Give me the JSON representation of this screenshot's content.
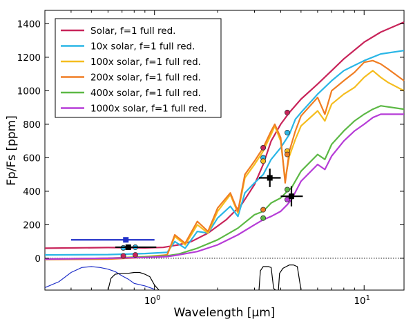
{
  "chart_data": {
    "type": "line",
    "xlabel": "Wavelength [μm]",
    "ylabel": "Fp/Fs [ppm]",
    "xscale": "log",
    "xlim": [
      0.3,
      15.5
    ],
    "ylim": [
      -190,
      1480
    ],
    "x_ticks": [
      {
        "value": 1,
        "label": "10",
        "sup": "0"
      },
      {
        "value": 10,
        "label": "10",
        "sup": "1"
      }
    ],
    "y_ticks": [
      0,
      200,
      400,
      600,
      800,
      1000,
      1200,
      1400
    ],
    "legend_position": "upper-left",
    "series": [
      {
        "name": "Solar, f=1 full red.",
        "color": "#c8245a",
        "points": [
          [
            0.3,
            60
          ],
          [
            0.6,
            64
          ],
          [
            0.9,
            62
          ],
          [
            1.1,
            65
          ],
          [
            1.3,
            80
          ],
          [
            1.5,
            100
          ],
          [
            1.8,
            150
          ],
          [
            2.2,
            230
          ],
          [
            2.6,
            320
          ],
          [
            3.0,
            440
          ],
          [
            3.3,
            560
          ],
          [
            3.6,
            700
          ],
          [
            4.0,
            800
          ],
          [
            4.4,
            870
          ],
          [
            5.0,
            950
          ],
          [
            6.0,
            1040
          ],
          [
            7.0,
            1120
          ],
          [
            8.0,
            1190
          ],
          [
            10.0,
            1290
          ],
          [
            12.0,
            1350
          ],
          [
            15.5,
            1410
          ]
        ]
      },
      {
        "name": "10x solar, f=1 full red.",
        "color": "#2ab6e6",
        "points": [
          [
            0.3,
            20
          ],
          [
            0.6,
            22
          ],
          [
            0.9,
            28
          ],
          [
            1.15,
            35
          ],
          [
            1.25,
            100
          ],
          [
            1.4,
            60
          ],
          [
            1.6,
            160
          ],
          [
            1.8,
            150
          ],
          [
            2.0,
            240
          ],
          [
            2.3,
            310
          ],
          [
            2.5,
            250
          ],
          [
            2.7,
            390
          ],
          [
            3.0,
            450
          ],
          [
            3.3,
            500
          ],
          [
            3.6,
            590
          ],
          [
            4.0,
            660
          ],
          [
            4.4,
            740
          ],
          [
            4.7,
            830
          ],
          [
            5.0,
            870
          ],
          [
            6.0,
            980
          ],
          [
            7.0,
            1060
          ],
          [
            8.0,
            1120
          ],
          [
            10.0,
            1180
          ],
          [
            12.0,
            1220
          ],
          [
            15.5,
            1240
          ]
        ]
      },
      {
        "name": "100x solar, f=1 full red.",
        "color": "#f5bd1f",
        "points": [
          [
            0.3,
            -5
          ],
          [
            0.6,
            0
          ],
          [
            0.9,
            10
          ],
          [
            1.15,
            20
          ],
          [
            1.25,
            130
          ],
          [
            1.4,
            80
          ],
          [
            1.6,
            200
          ],
          [
            1.8,
            150
          ],
          [
            2.0,
            280
          ],
          [
            2.3,
            380
          ],
          [
            2.5,
            270
          ],
          [
            2.7,
            480
          ],
          [
            3.0,
            560
          ],
          [
            3.3,
            640
          ],
          [
            3.6,
            740
          ],
          [
            3.75,
            790
          ],
          [
            4.0,
            700
          ],
          [
            4.2,
            470
          ],
          [
            4.4,
            610
          ],
          [
            4.7,
            710
          ],
          [
            5.0,
            790
          ],
          [
            6.0,
            880
          ],
          [
            6.5,
            820
          ],
          [
            7.0,
            920
          ],
          [
            8.0,
            980
          ],
          [
            9.0,
            1020
          ],
          [
            10.0,
            1080
          ],
          [
            11.0,
            1120
          ],
          [
            12.0,
            1080
          ],
          [
            13.0,
            1050
          ],
          [
            15.5,
            1000
          ]
        ]
      },
      {
        "name": "200x solar, f=1 full red.",
        "color": "#f07d23",
        "points": [
          [
            0.3,
            -8
          ],
          [
            0.6,
            -5
          ],
          [
            0.9,
            5
          ],
          [
            1.15,
            20
          ],
          [
            1.25,
            140
          ],
          [
            1.4,
            90
          ],
          [
            1.6,
            220
          ],
          [
            1.8,
            160
          ],
          [
            2.0,
            300
          ],
          [
            2.3,
            390
          ],
          [
            2.5,
            280
          ],
          [
            2.7,
            500
          ],
          [
            3.0,
            580
          ],
          [
            3.3,
            660
          ],
          [
            3.6,
            760
          ],
          [
            3.75,
            800
          ],
          [
            4.0,
            720
          ],
          [
            4.2,
            450
          ],
          [
            4.4,
            640
          ],
          [
            4.7,
            760
          ],
          [
            5.0,
            850
          ],
          [
            6.0,
            960
          ],
          [
            6.5,
            860
          ],
          [
            7.0,
            1000
          ],
          [
            8.0,
            1060
          ],
          [
            9.0,
            1110
          ],
          [
            10.0,
            1170
          ],
          [
            11.0,
            1180
          ],
          [
            12.0,
            1160
          ],
          [
            13.0,
            1130
          ],
          [
            15.5,
            1060
          ]
        ]
      },
      {
        "name": "400x solar, f=1 full red.",
        "color": "#5cb845",
        "points": [
          [
            0.3,
            -5
          ],
          [
            0.6,
            0
          ],
          [
            0.9,
            8
          ],
          [
            1.15,
            15
          ],
          [
            1.3,
            25
          ],
          [
            1.6,
            60
          ],
          [
            2.0,
            110
          ],
          [
            2.5,
            180
          ],
          [
            3.0,
            260
          ],
          [
            3.3,
            280
          ],
          [
            3.6,
            330
          ],
          [
            4.0,
            360
          ],
          [
            4.3,
            400
          ],
          [
            4.5,
            420
          ],
          [
            5.0,
            520
          ],
          [
            6.0,
            620
          ],
          [
            6.5,
            590
          ],
          [
            7.0,
            680
          ],
          [
            8.0,
            760
          ],
          [
            9.0,
            820
          ],
          [
            10.0,
            860
          ],
          [
            11.0,
            890
          ],
          [
            12.0,
            910
          ],
          [
            15.5,
            890
          ]
        ]
      },
      {
        "name": "1000x solar, f=1 full red.",
        "color": "#b63cd7",
        "points": [
          [
            0.3,
            -5
          ],
          [
            0.6,
            0
          ],
          [
            0.9,
            5
          ],
          [
            1.15,
            10
          ],
          [
            1.3,
            20
          ],
          [
            1.6,
            40
          ],
          [
            2.0,
            80
          ],
          [
            2.5,
            140
          ],
          [
            3.0,
            200
          ],
          [
            3.3,
            230
          ],
          [
            3.6,
            250
          ],
          [
            4.0,
            280
          ],
          [
            4.3,
            320
          ],
          [
            4.5,
            350
          ],
          [
            5.0,
            460
          ],
          [
            6.0,
            560
          ],
          [
            6.5,
            530
          ],
          [
            7.0,
            610
          ],
          [
            8.0,
            700
          ],
          [
            9.0,
            760
          ],
          [
            10.0,
            800
          ],
          [
            11.0,
            840
          ],
          [
            12.0,
            860
          ],
          [
            15.5,
            860
          ]
        ]
      }
    ],
    "band_markers": [
      {
        "x": 0.71,
        "values": [
          14,
          62
        ]
      },
      {
        "x": 0.81,
        "values": [
          20,
          66
        ]
      },
      {
        "x": 3.3,
        "values": [
          660,
          600,
          580,
          290,
          240
        ]
      },
      {
        "x": 4.3,
        "values": [
          870,
          750,
          640,
          620,
          410,
          350
        ]
      }
    ],
    "observations": [
      {
        "x": 0.73,
        "y": 110,
        "xerr": [
          0.33,
          0.27
        ],
        "yerr": 15,
        "color": "#1f2fc8",
        "marker": "square"
      },
      {
        "x": 0.75,
        "y": 66,
        "xerr": [
          0.1,
          0.27
        ],
        "yerr": 12,
        "color": "#000000",
        "marker": "square"
      },
      {
        "x": 3.55,
        "y": 480,
        "xerr": [
          0.4,
          0.45
        ],
        "yerr": 55,
        "color": "#000000",
        "marker": "square"
      },
      {
        "x": 4.5,
        "y": 370,
        "xerr": [
          0.5,
          0.6
        ],
        "yerr": 60,
        "color": "#000000",
        "marker": "square"
      }
    ],
    "filter_curves": [
      {
        "color": "#1f2fc8",
        "points": [
          [
            0.3,
            -175
          ],
          [
            0.35,
            -140
          ],
          [
            0.4,
            -85
          ],
          [
            0.45,
            -55
          ],
          [
            0.5,
            -50
          ],
          [
            0.55,
            -55
          ],
          [
            0.6,
            -65
          ],
          [
            0.65,
            -80
          ],
          [
            0.7,
            -105
          ],
          [
            0.75,
            -125
          ],
          [
            0.8,
            -150
          ],
          [
            0.9,
            -165
          ],
          [
            1.0,
            -185
          ]
        ]
      },
      {
        "color": "#000000",
        "points": [
          [
            0.6,
            -190
          ],
          [
            0.62,
            -120
          ],
          [
            0.65,
            -95
          ],
          [
            0.7,
            -90
          ],
          [
            0.75,
            -90
          ],
          [
            0.8,
            -85
          ],
          [
            0.85,
            -85
          ],
          [
            0.9,
            -95
          ],
          [
            0.95,
            -110
          ],
          [
            1.0,
            -160
          ],
          [
            1.05,
            -190
          ]
        ]
      },
      {
        "color": "#000000",
        "points": [
          [
            3.15,
            -190
          ],
          [
            3.2,
            -75
          ],
          [
            3.3,
            -50
          ],
          [
            3.5,
            -50
          ],
          [
            3.6,
            -55
          ],
          [
            3.7,
            -180
          ],
          [
            3.78,
            -190
          ]
        ]
      },
      {
        "color": "#000000",
        "points": [
          [
            3.9,
            -190
          ],
          [
            3.95,
            -90
          ],
          [
            4.1,
            -60
          ],
          [
            4.4,
            -40
          ],
          [
            4.6,
            -40
          ],
          [
            4.8,
            -50
          ],
          [
            5.0,
            -190
          ]
        ]
      }
    ]
  }
}
